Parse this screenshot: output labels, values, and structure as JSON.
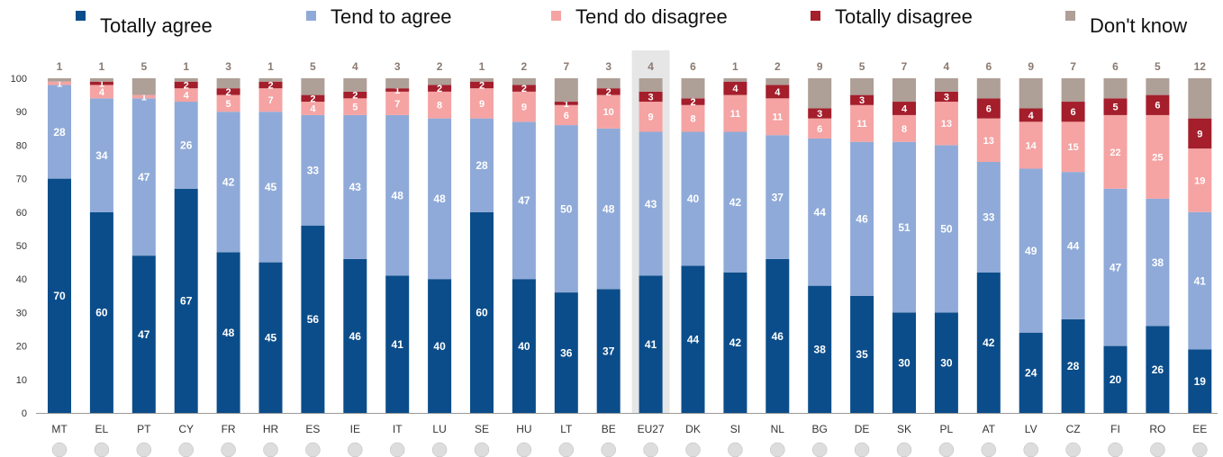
{
  "legend": {
    "totally_agree": "Totally agree",
    "tend_to_agree": "Tend to agree",
    "tend_to_disagree": "Tend do disagree",
    "totally_disagree": "Totally disagree",
    "dont_know": "Don't know"
  },
  "colors": {
    "totally_agree": "#0b4d8a",
    "tend_to_agree": "#8faad8",
    "tend_to_disagree": "#f5a3a3",
    "totally_disagree": "#a41e2b",
    "dont_know": "#ae9f97",
    "highlight": "#e6e6e6",
    "top_label": "#8a7a70"
  },
  "chart_data": {
    "type": "bar",
    "stacked": true,
    "categories": [
      "MT",
      "EL",
      "PT",
      "CY",
      "FR",
      "HR",
      "ES",
      "IE",
      "IT",
      "LU",
      "SE",
      "HU",
      "LT",
      "BE",
      "EU27",
      "DK",
      "SI",
      "NL",
      "BG",
      "DE",
      "SK",
      "PL",
      "AT",
      "LV",
      "CZ",
      "FI",
      "RO",
      "EE"
    ],
    "highlighted_category": "EU27",
    "flags": [
      "flag-malta",
      "flag-greece",
      "flag-portugal",
      "flag-cyprus",
      "flag-france",
      "flag-croatia",
      "flag-spain",
      "flag-ireland",
      "flag-italy",
      "flag-luxembourg",
      "flag-sweden",
      "flag-hungary",
      "flag-lithuania",
      "flag-belgium",
      "flag-eu",
      "flag-denmark",
      "flag-slovenia",
      "flag-netherlands",
      "flag-bulgaria",
      "flag-germany",
      "flag-slovakia",
      "flag-poland",
      "flag-austria",
      "flag-latvia",
      "flag-czechia",
      "flag-finland",
      "flag-romania",
      "flag-estonia"
    ],
    "series": [
      {
        "name": "Totally agree",
        "values": [
          70,
          60,
          47,
          67,
          48,
          45,
          56,
          46,
          41,
          40,
          60,
          40,
          36,
          37,
          41,
          44,
          42,
          46,
          38,
          35,
          30,
          30,
          42,
          24,
          28,
          20,
          26,
          19
        ]
      },
      {
        "name": "Tend to agree",
        "values": [
          28,
          34,
          47,
          26,
          42,
          45,
          33,
          43,
          48,
          48,
          28,
          47,
          50,
          48,
          43,
          40,
          42,
          37,
          44,
          46,
          51,
          50,
          33,
          49,
          44,
          47,
          38,
          41
        ]
      },
      {
        "name": "Tend do disagree",
        "values": [
          1,
          4,
          1,
          4,
          5,
          7,
          4,
          5,
          7,
          8,
          9,
          9,
          6,
          10,
          9,
          8,
          11,
          11,
          6,
          11,
          8,
          13,
          13,
          14,
          15,
          22,
          25,
          19
        ]
      },
      {
        "name": "Totally disagree",
        "values": [
          0,
          1,
          0,
          2,
          2,
          2,
          2,
          2,
          1,
          2,
          2,
          2,
          1,
          2,
          3,
          2,
          4,
          4,
          3,
          3,
          4,
          3,
          6,
          4,
          6,
          5,
          6,
          9
        ]
      },
      {
        "name": "Don't know",
        "values": [
          1,
          1,
          5,
          1,
          3,
          1,
          5,
          4,
          3,
          2,
          1,
          2,
          7,
          3,
          4,
          6,
          1,
          2,
          9,
          5,
          7,
          4,
          6,
          9,
          7,
          6,
          5,
          12
        ]
      }
    ],
    "ylim": [
      0,
      100
    ],
    "yticks": [
      0,
      10,
      20,
      30,
      40,
      50,
      60,
      70,
      80,
      90,
      100
    ],
    "grid": false,
    "legend_position": "top"
  }
}
